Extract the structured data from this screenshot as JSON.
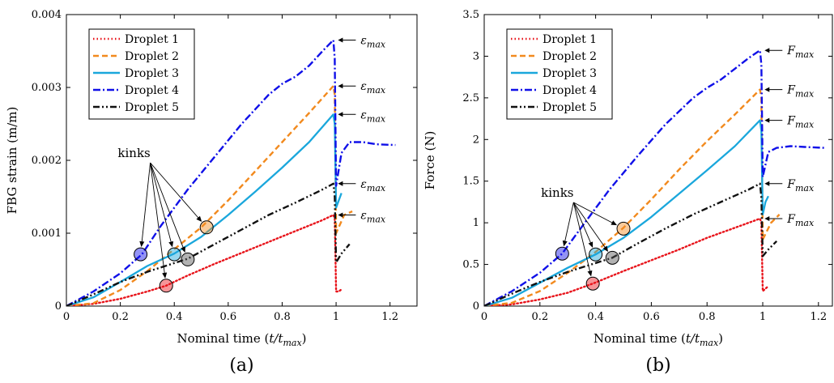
{
  "chart_data": [
    {
      "type": "line",
      "panel_label": "(a)",
      "xlabel": "Nominal time (t/t_max)",
      "ylabel": "FBG strain (m/m)",
      "xlim": [
        0,
        1.3
      ],
      "ylim": [
        0,
        0.004
      ],
      "xticks": [
        0,
        0.2,
        0.4,
        0.6,
        0.8,
        1,
        1.2
      ],
      "xtick_labels": [
        "0",
        "0.2",
        "0.4",
        "0.6",
        "0.8",
        "1",
        "1.2"
      ],
      "yticks": [
        0,
        0.001,
        0.002,
        0.003,
        0.004
      ],
      "ytick_labels": [
        "0",
        "0.001",
        "0.002",
        "0.003",
        "0.004"
      ],
      "grid": false,
      "legend": {
        "position": "top-left"
      },
      "annotation_symbol": "ε",
      "annotation_sub": "max",
      "series": [
        {
          "name": "Droplet 1",
          "color": "#e8141b",
          "dash": "dotted",
          "x": [
            0,
            0.1,
            0.2,
            0.3,
            0.37,
            0.45,
            0.55,
            0.65,
            0.75,
            0.85,
            0.95,
            0.99,
            0.995,
            1.0,
            1.01,
            1.02
          ],
          "y": [
            0,
            3e-05,
            0.0001,
            0.0002,
            0.00028,
            0.00042,
            0.00058,
            0.00073,
            0.00088,
            0.00103,
            0.00118,
            0.00125,
            0.0012,
            0.0002,
            0.0002,
            0.00023
          ]
        },
        {
          "name": "Droplet 2",
          "color": "#f28a1e",
          "dash": "dashed",
          "x": [
            0,
            0.1,
            0.2,
            0.3,
            0.4,
            0.5,
            0.6,
            0.7,
            0.8,
            0.9,
            0.99,
            0.995,
            1.0,
            1.03,
            1.06
          ],
          "y": [
            0,
            4e-05,
            0.00022,
            0.00048,
            0.00078,
            0.00108,
            0.00145,
            0.00185,
            0.00225,
            0.00265,
            0.00302,
            0.0029,
            0.001,
            0.00125,
            0.0013
          ]
        },
        {
          "name": "Droplet 3",
          "color": "#1aa7dc",
          "dash": "solid",
          "x": [
            0,
            0.1,
            0.2,
            0.3,
            0.4,
            0.5,
            0.6,
            0.7,
            0.8,
            0.9,
            0.99,
            0.995,
            1.0,
            1.01,
            1.02
          ],
          "y": [
            0,
            0.00012,
            0.00033,
            0.00055,
            0.00072,
            0.00095,
            0.00125,
            0.00157,
            0.0019,
            0.00225,
            0.00263,
            0.0025,
            0.00135,
            0.00145,
            0.00155
          ]
        },
        {
          "name": "Droplet 4",
          "color": "#1010e8",
          "dash": "dashdot",
          "x": [
            0,
            0.1,
            0.2,
            0.28,
            0.35,
            0.45,
            0.55,
            0.65,
            0.75,
            0.8,
            0.85,
            0.9,
            0.95,
            0.99,
            0.995,
            1.0,
            1.02,
            1.05,
            1.1,
            1.15,
            1.22
          ],
          "y": [
            0,
            0.0002,
            0.00045,
            0.00071,
            0.0011,
            0.0016,
            0.00205,
            0.0025,
            0.0029,
            0.00305,
            0.00315,
            0.0033,
            0.0035,
            0.00365,
            0.0034,
            0.00165,
            0.0021,
            0.00225,
            0.00225,
            0.00222,
            0.00221
          ]
        },
        {
          "name": "Droplet 5",
          "color": "#111111",
          "dash": "dashdotdot",
          "x": [
            0,
            0.1,
            0.2,
            0.3,
            0.45,
            0.55,
            0.65,
            0.75,
            0.85,
            0.95,
            0.99,
            0.995,
            1.0,
            1.02,
            1.05
          ],
          "y": [
            0,
            0.00016,
            0.00033,
            0.00047,
            0.00065,
            0.00085,
            0.00105,
            0.00125,
            0.00142,
            0.0016,
            0.00168,
            0.0015,
            0.0006,
            0.00072,
            0.00085
          ]
        }
      ],
      "kinks": {
        "label": "kinks",
        "points": [
          {
            "x": 0.275,
            "y": 0.00071,
            "color": "#1010e8"
          },
          {
            "x": 0.37,
            "y": 0.00028,
            "color": "#e8141b"
          },
          {
            "x": 0.4,
            "y": 0.00071,
            "color": "#1aa7dc"
          },
          {
            "x": 0.45,
            "y": 0.00064,
            "color": "#555555"
          },
          {
            "x": 0.52,
            "y": 0.00108,
            "color": "#f28a1e"
          }
        ]
      },
      "max_markers": [
        {
          "series": "Droplet 4",
          "x": 0.995,
          "y": 0.00365
        },
        {
          "series": "Droplet 2",
          "x": 0.995,
          "y": 0.00302
        },
        {
          "series": "Droplet 3",
          "x": 0.995,
          "y": 0.00263
        },
        {
          "series": "Droplet 5",
          "x": 0.995,
          "y": 0.00168
        },
        {
          "series": "Droplet 1",
          "x": 0.995,
          "y": 0.00125
        }
      ]
    },
    {
      "type": "line",
      "panel_label": "(b)",
      "xlabel": "Nominal time (t/t_max)",
      "ylabel": "Force (N)",
      "xlim": [
        0,
        1.25
      ],
      "ylim": [
        0,
        3.5
      ],
      "xticks": [
        0,
        0.2,
        0.4,
        0.6,
        0.8,
        1,
        1.2
      ],
      "xtick_labels": [
        "0",
        "0.2",
        "0.4",
        "0.6",
        "0.8",
        "1",
        "1.2"
      ],
      "yticks": [
        0,
        0.5,
        1,
        1.5,
        2,
        2.5,
        3,
        3.5
      ],
      "ytick_labels": [
        "0",
        "0.5",
        "1",
        "1.5",
        "2",
        "2.5",
        "3",
        "3.5"
      ],
      "grid": false,
      "legend": {
        "position": "top-left"
      },
      "annotation_symbol": "F",
      "annotation_sub": "max",
      "series": [
        {
          "name": "Droplet 1",
          "color": "#e8141b",
          "dash": "dotted",
          "x": [
            0,
            0.1,
            0.2,
            0.3,
            0.39,
            0.5,
            0.6,
            0.7,
            0.8,
            0.9,
            0.99,
            0.995,
            1.0,
            1.02
          ],
          "y": [
            0,
            0.02,
            0.08,
            0.16,
            0.27,
            0.42,
            0.55,
            0.68,
            0.82,
            0.94,
            1.05,
            1.0,
            0.18,
            0.24
          ]
        },
        {
          "name": "Droplet 2",
          "color": "#f28a1e",
          "dash": "dashed",
          "x": [
            0,
            0.1,
            0.2,
            0.3,
            0.4,
            0.5,
            0.6,
            0.7,
            0.8,
            0.9,
            0.99,
            0.995,
            1.0,
            1.03,
            1.06
          ],
          "y": [
            0,
            0.04,
            0.18,
            0.4,
            0.65,
            0.94,
            1.28,
            1.64,
            1.98,
            2.3,
            2.6,
            2.5,
            0.8,
            1.0,
            1.1
          ]
        },
        {
          "name": "Droplet 3",
          "color": "#1aa7dc",
          "dash": "solid",
          "x": [
            0,
            0.1,
            0.2,
            0.3,
            0.4,
            0.5,
            0.6,
            0.7,
            0.8,
            0.9,
            0.99,
            0.995,
            1.0,
            1.01,
            1.02
          ],
          "y": [
            0,
            0.1,
            0.28,
            0.46,
            0.62,
            0.82,
            1.07,
            1.35,
            1.63,
            1.92,
            2.23,
            2.1,
            1.1,
            1.25,
            1.32
          ]
        },
        {
          "name": "Droplet 4",
          "color": "#1010e8",
          "dash": "dashdot",
          "x": [
            0,
            0.1,
            0.2,
            0.28,
            0.35,
            0.45,
            0.55,
            0.65,
            0.75,
            0.8,
            0.85,
            0.9,
            0.95,
            0.99,
            0.995,
            1.0,
            1.02,
            1.05,
            1.1,
            1.15,
            1.22
          ],
          "y": [
            0,
            0.18,
            0.4,
            0.63,
            0.95,
            1.4,
            1.8,
            2.18,
            2.5,
            2.62,
            2.72,
            2.85,
            2.98,
            3.07,
            2.9,
            1.55,
            1.85,
            1.9,
            1.92,
            1.91,
            1.9
          ]
        },
        {
          "name": "Droplet 5",
          "color": "#111111",
          "dash": "dashdotdot",
          "x": [
            0,
            0.1,
            0.2,
            0.3,
            0.46,
            0.55,
            0.65,
            0.75,
            0.85,
            0.95,
            0.99,
            0.995,
            1.0,
            1.02,
            1.05
          ],
          "y": [
            0,
            0.15,
            0.29,
            0.41,
            0.58,
            0.75,
            0.93,
            1.1,
            1.25,
            1.4,
            1.47,
            1.3,
            0.6,
            0.68,
            0.78
          ]
        }
      ],
      "kinks": {
        "label": "kinks",
        "points": [
          {
            "x": 0.28,
            "y": 0.63,
            "color": "#1010e8"
          },
          {
            "x": 0.39,
            "y": 0.27,
            "color": "#e8141b"
          },
          {
            "x": 0.4,
            "y": 0.62,
            "color": "#1aa7dc"
          },
          {
            "x": 0.46,
            "y": 0.58,
            "color": "#555555"
          },
          {
            "x": 0.5,
            "y": 0.93,
            "color": "#f28a1e"
          }
        ]
      },
      "max_markers": [
        {
          "series": "Droplet 4",
          "x": 0.995,
          "y": 3.07
        },
        {
          "series": "Droplet 2",
          "x": 0.995,
          "y": 2.6
        },
        {
          "series": "Droplet 3",
          "x": 0.995,
          "y": 2.23
        },
        {
          "series": "Droplet 5",
          "x": 0.995,
          "y": 1.47
        },
        {
          "series": "Droplet 1",
          "x": 0.995,
          "y": 1.05
        }
      ]
    }
  ]
}
